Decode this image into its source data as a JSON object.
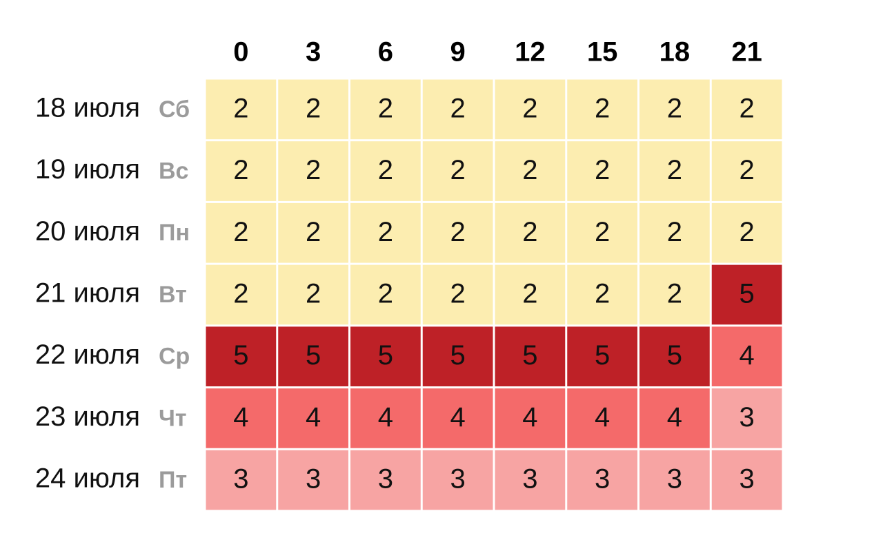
{
  "chart_data": {
    "type": "heatmap",
    "title": "",
    "x": [
      "0",
      "3",
      "6",
      "9",
      "12",
      "15",
      "18",
      "21"
    ],
    "rows": [
      {
        "date": "18 июля",
        "weekday": "Сб",
        "values": [
          2,
          2,
          2,
          2,
          2,
          2,
          2,
          2
        ]
      },
      {
        "date": "19 июля",
        "weekday": "Вс",
        "values": [
          2,
          2,
          2,
          2,
          2,
          2,
          2,
          2
        ]
      },
      {
        "date": "20 июля",
        "weekday": "Пн",
        "values": [
          2,
          2,
          2,
          2,
          2,
          2,
          2,
          2
        ]
      },
      {
        "date": "21 июля",
        "weekday": "Вт",
        "values": [
          2,
          2,
          2,
          2,
          2,
          2,
          2,
          5
        ]
      },
      {
        "date": "22 июля",
        "weekday": "Ср",
        "values": [
          5,
          5,
          5,
          5,
          5,
          5,
          5,
          4
        ]
      },
      {
        "date": "23 июля",
        "weekday": "Чт",
        "values": [
          4,
          4,
          4,
          4,
          4,
          4,
          4,
          3
        ]
      },
      {
        "date": "24 июля",
        "weekday": "Пт",
        "values": [
          3,
          3,
          3,
          3,
          3,
          3,
          3,
          3
        ]
      }
    ],
    "color_scale": {
      "2": "#fcedb0",
      "3": "#f7a4a3",
      "4": "#f46a6a",
      "5": "#be2127"
    },
    "grid_color": "#ffffff"
  }
}
